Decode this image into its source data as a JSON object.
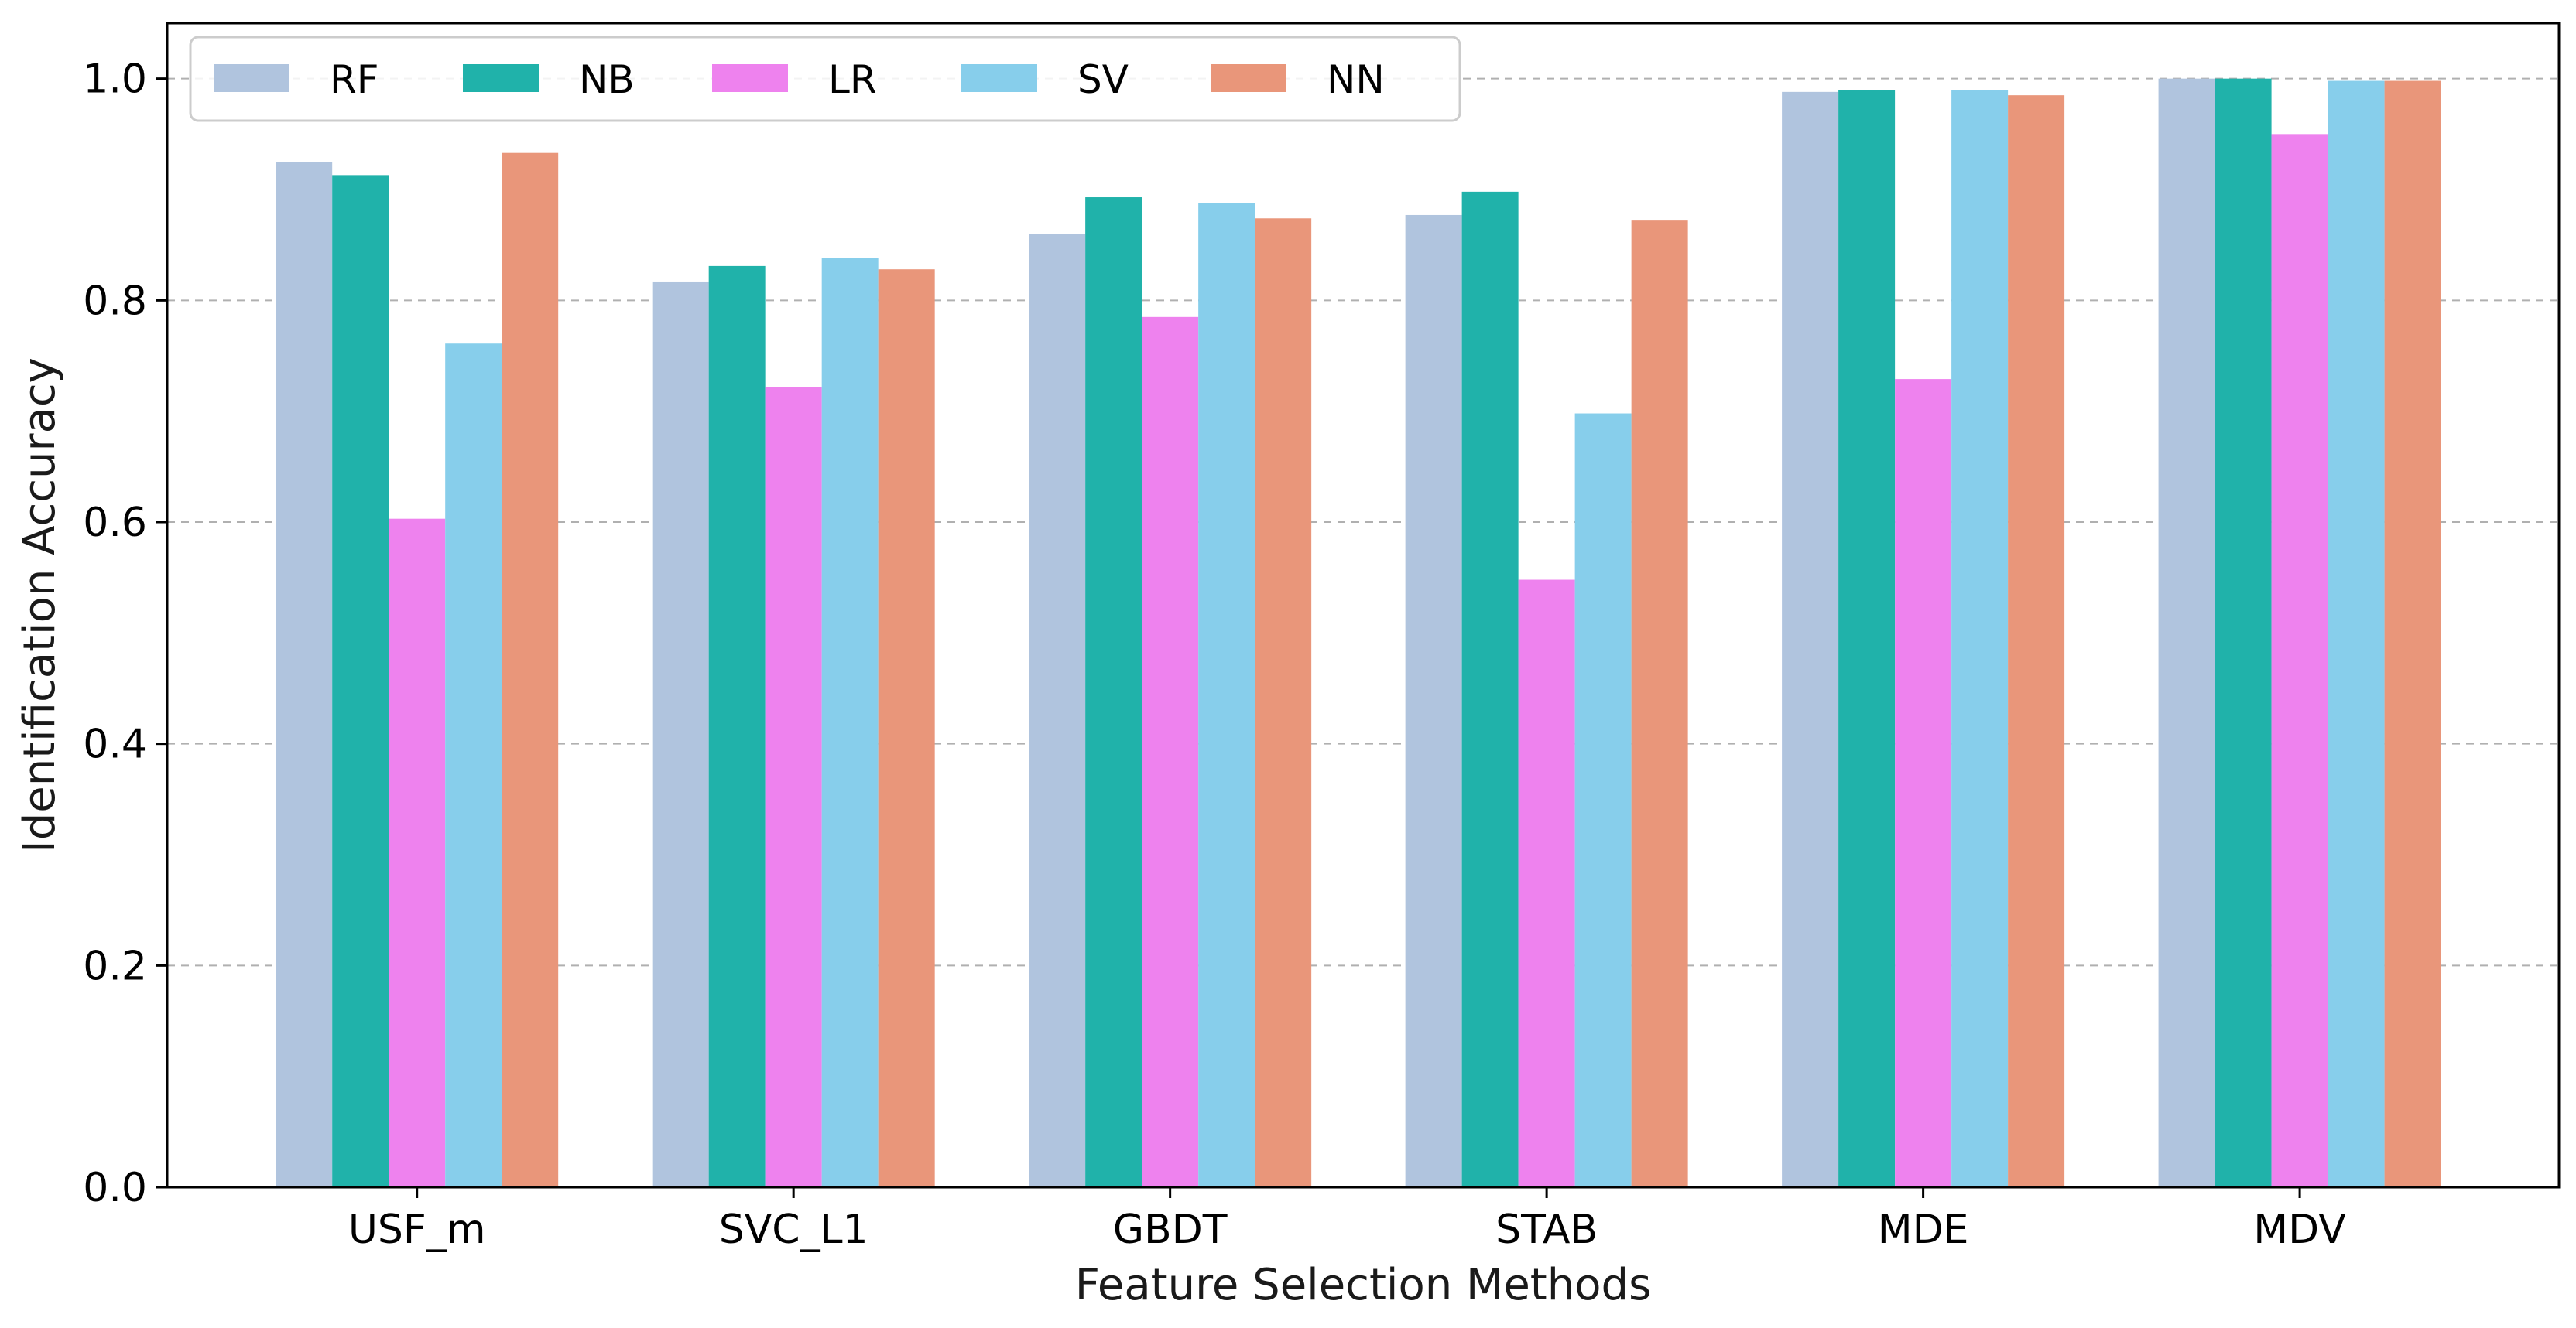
{
  "chart_data": {
    "type": "bar",
    "title": "",
    "xlabel": "Feature Selection Methods",
    "ylabel": "Identification Accuracy",
    "categories": [
      "USF_m",
      "SVC_L1",
      "GBDT",
      "STAB",
      "MDE",
      "MDV"
    ],
    "ylim": [
      0,
      1.05
    ],
    "yticks": [
      0.0,
      0.2,
      0.4,
      0.6,
      0.8,
      1.0
    ],
    "ytick_labels": [
      "0.0",
      "0.2",
      "0.4",
      "0.6",
      "0.8",
      "1.0"
    ],
    "grid": true,
    "legend_position": "top-left",
    "series": [
      {
        "name": "RF",
        "color": "#b0c4de",
        "values": [
          0.925,
          0.817,
          0.86,
          0.877,
          0.988,
          1.0
        ]
      },
      {
        "name": "NB",
        "color": "#20b2aa",
        "values": [
          0.913,
          0.831,
          0.893,
          0.898,
          0.99,
          1.0
        ]
      },
      {
        "name": "LR",
        "color": "#ee82ee",
        "values": [
          0.603,
          0.722,
          0.785,
          0.548,
          0.729,
          0.95
        ]
      },
      {
        "name": "SV",
        "color": "#87ceeb",
        "values": [
          0.761,
          0.838,
          0.888,
          0.698,
          0.99,
          0.998
        ]
      },
      {
        "name": "NN",
        "color": "#e9967a",
        "values": [
          0.933,
          0.828,
          0.874,
          0.872,
          0.985,
          0.998
        ]
      }
    ]
  }
}
